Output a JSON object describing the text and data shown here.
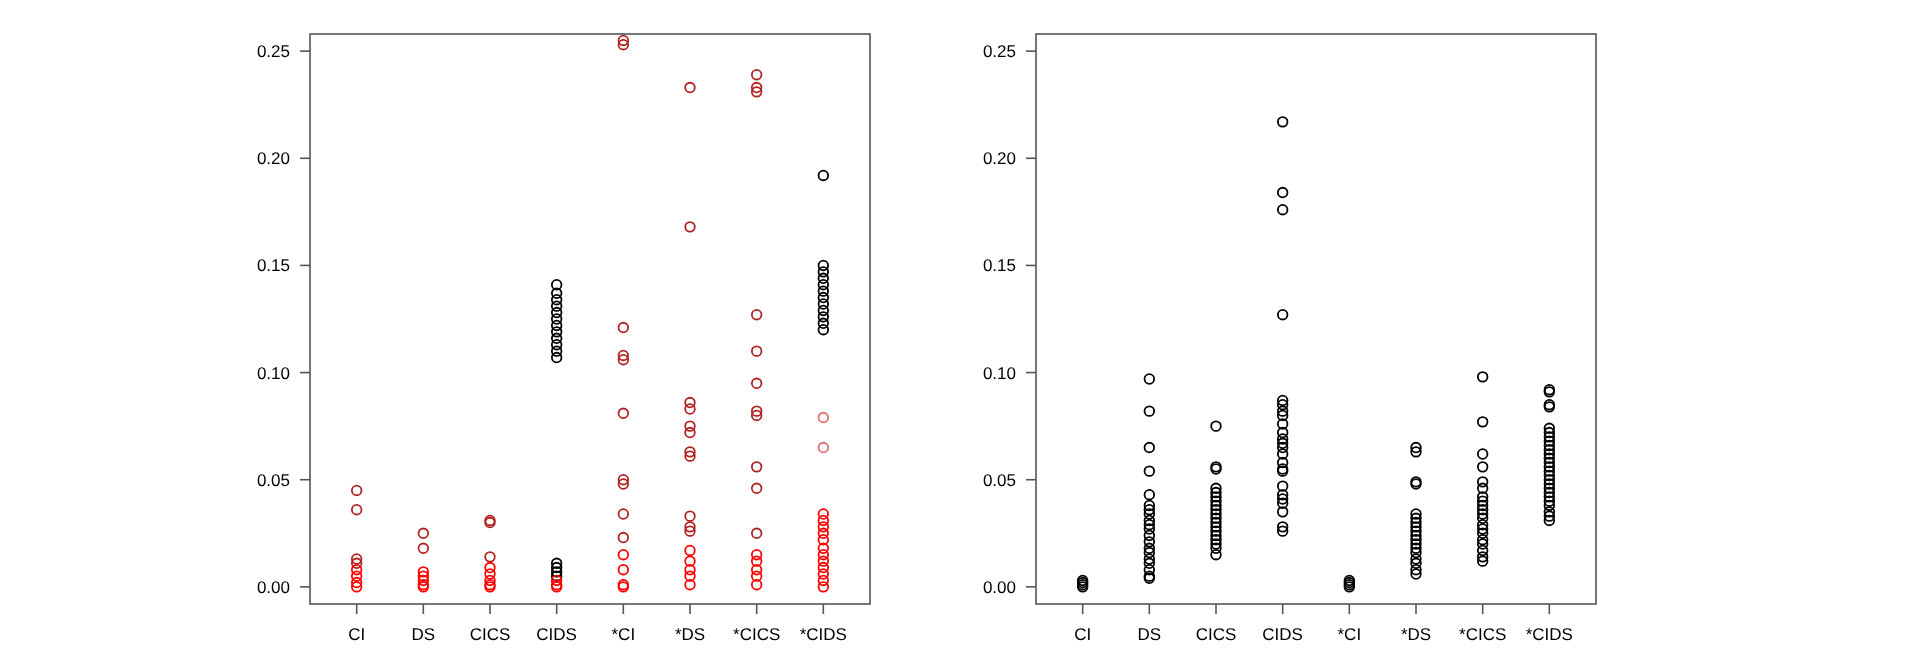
{
  "chart_data": [
    {
      "type": "scatter",
      "categories": [
        "CI",
        "DS",
        "CICS",
        "CIDS",
        "*CI",
        "*DS",
        "*CICS",
        "*CIDS"
      ],
      "ylim": [
        -0.008,
        0.258
      ],
      "yticks": [
        {
          "value": 0,
          "label": "0.00"
        },
        {
          "value": 0.05,
          "label": "0.05"
        },
        {
          "value": 0.1,
          "label": "0.10"
        },
        {
          "value": 0.15,
          "label": "0.15"
        },
        {
          "value": 0.2,
          "label": "0.20"
        },
        {
          "value": 0.25,
          "label": "0.25"
        }
      ],
      "marker": "circle",
      "grid": false,
      "series": [
        {
          "color": "#000000",
          "x": [
            "CIDS",
            "CIDS",
            "CIDS",
            "CIDS",
            "CIDS",
            "CIDS",
            "CIDS",
            "CIDS",
            "CIDS",
            "CIDS",
            "CIDS",
            "CIDS",
            "CIDS",
            "CIDS",
            "CIDS",
            "CIDS",
            "*CIDS",
            "*CIDS",
            "*CIDS",
            "*CIDS",
            "*CIDS",
            "*CIDS",
            "*CIDS",
            "*CIDS",
            "*CIDS",
            "*CIDS",
            "*CIDS",
            "*CIDS"
          ],
          "values": [
            0.141,
            0.137,
            0.134,
            0.131,
            0.128,
            0.125,
            0.122,
            0.119,
            0.116,
            0.113,
            0.11,
            0.107,
            0.011,
            0.009,
            0.007,
            0.005,
            0.192,
            0.15,
            0.147,
            0.144,
            0.141,
            0.138,
            0.135,
            0.132,
            0.129,
            0.126,
            0.123,
            0.12
          ]
        },
        {
          "color": "#b22222",
          "x": [
            "CI",
            "CI",
            "CI",
            "CI",
            "DS",
            "DS",
            "CICS",
            "CICS",
            "CICS",
            "*CI",
            "*CI",
            "*CI",
            "*CI",
            "*CI",
            "*CI",
            "*CI",
            "*CI",
            "*CI",
            "*CI",
            "*DS",
            "*DS",
            "*DS",
            "*DS",
            "*DS",
            "*DS",
            "*DS",
            "*DS",
            "*DS",
            "*DS",
            "*DS",
            "*CICS",
            "*CICS",
            "*CICS",
            "*CICS",
            "*CICS",
            "*CICS",
            "*CICS",
            "*CICS",
            "*CICS",
            "*CICS",
            "*CICS"
          ],
          "values": [
            0.045,
            0.036,
            0.013,
            0.011,
            0.025,
            0.018,
            0.03,
            0.031,
            0.014,
            0.255,
            0.253,
            0.121,
            0.108,
            0.106,
            0.081,
            0.05,
            0.048,
            0.034,
            0.023,
            0.233,
            0.168,
            0.086,
            0.083,
            0.075,
            0.072,
            0.063,
            0.061,
            0.033,
            0.028,
            0.026,
            0.239,
            0.233,
            0.231,
            0.127,
            0.11,
            0.095,
            0.082,
            0.08,
            0.056,
            0.046,
            0.025
          ]
        },
        {
          "color": "#e07070",
          "x": [
            "*CIDS",
            "*CIDS"
          ],
          "values": [
            0.079,
            0.065
          ]
        },
        {
          "color": "#ff0000",
          "x": [
            "CI",
            "CI",
            "CI",
            "CI",
            "DS",
            "DS",
            "DS",
            "DS",
            "DS",
            "CICS",
            "CICS",
            "CICS",
            "CICS",
            "CICS",
            "CIDS",
            "CIDS",
            "CIDS",
            "*CI",
            "*CI",
            "*CI",
            "*CI",
            "*DS",
            "*DS",
            "*DS",
            "*DS",
            "*DS",
            "*CICS",
            "*CICS",
            "*CICS",
            "*CICS",
            "*CICS",
            "*CIDS",
            "*CIDS",
            "*CIDS",
            "*CIDS",
            "*CIDS",
            "*CIDS",
            "*CIDS",
            "*CIDS",
            "*CIDS",
            "*CIDS",
            "*CIDS",
            "*CIDS"
          ],
          "values": [
            0.008,
            0.005,
            0.002,
            0,
            0.007,
            0.005,
            0.003,
            0.001,
            0,
            0.009,
            0.006,
            0.003,
            0.001,
            0,
            0.003,
            0.001,
            0,
            0.015,
            0.008,
            0.001,
            0,
            0.017,
            0.012,
            0.008,
            0.005,
            0.001,
            0.015,
            0.012,
            0.008,
            0.005,
            0.001,
            0.034,
            0.031,
            0.028,
            0.025,
            0.022,
            0.018,
            0.015,
            0.012,
            0.009,
            0.006,
            0.003,
            0
          ]
        }
      ]
    },
    {
      "type": "scatter",
      "categories": [
        "CI",
        "DS",
        "CICS",
        "CIDS",
        "*CI",
        "*DS",
        "*CICS",
        "*CIDS"
      ],
      "ylim": [
        -0.008,
        0.258
      ],
      "yticks": [
        {
          "value": 0,
          "label": "0.00"
        },
        {
          "value": 0.05,
          "label": "0.05"
        },
        {
          "value": 0.1,
          "label": "0.10"
        },
        {
          "value": 0.15,
          "label": "0.15"
        },
        {
          "value": 0.2,
          "label": "0.20"
        },
        {
          "value": 0.25,
          "label": "0.25"
        }
      ],
      "marker": "circle",
      "grid": false,
      "series": [
        {
          "color": "#000000",
          "x": [
            "CI",
            "CI",
            "CI",
            "CI",
            "DS",
            "DS",
            "DS",
            "DS",
            "DS",
            "DS",
            "DS",
            "DS",
            "DS",
            "DS",
            "DS",
            "DS",
            "DS",
            "DS",
            "DS",
            "DS",
            "DS",
            "DS",
            "DS",
            "DS",
            "CICS",
            "CICS",
            "CICS",
            "CICS",
            "CICS",
            "CICS",
            "CICS",
            "CICS",
            "CICS",
            "CICS",
            "CICS",
            "CICS",
            "CICS",
            "CICS",
            "CICS",
            "CICS",
            "CICS",
            "CICS",
            "CICS",
            "CIDS",
            "CIDS",
            "CIDS",
            "CIDS",
            "CIDS",
            "CIDS",
            "CIDS",
            "CIDS",
            "CIDS",
            "CIDS",
            "CIDS",
            "CIDS",
            "CIDS",
            "CIDS",
            "CIDS",
            "CIDS",
            "CIDS",
            "CIDS",
            "CIDS",
            "CIDS",
            "CIDS",
            "CIDS",
            "CIDS",
            "CIDS",
            "*CI",
            "*CI",
            "*CI",
            "*CI",
            "*DS",
            "*DS",
            "*DS",
            "*DS",
            "*DS",
            "*DS",
            "*DS",
            "*DS",
            "*DS",
            "*DS",
            "*DS",
            "*DS",
            "*DS",
            "*DS",
            "*DS",
            "*DS",
            "*DS",
            "*DS",
            "*CICS",
            "*CICS",
            "*CICS",
            "*CICS",
            "*CICS",
            "*CICS",
            "*CICS",
            "*CICS",
            "*CICS",
            "*CICS",
            "*CICS",
            "*CICS",
            "*CICS",
            "*CICS",
            "*CICS",
            "*CICS",
            "*CICS",
            "*CICS",
            "*CICS",
            "*CICS",
            "*CIDS",
            "*CIDS",
            "*CIDS",
            "*CIDS",
            "*CIDS",
            "*CIDS",
            "*CIDS",
            "*CIDS",
            "*CIDS",
            "*CIDS",
            "*CIDS",
            "*CIDS",
            "*CIDS",
            "*CIDS",
            "*CIDS",
            "*CIDS",
            "*CIDS",
            "*CIDS",
            "*CIDS",
            "*CIDS",
            "*CIDS",
            "*CIDS",
            "*CIDS",
            "*CIDS",
            "*CIDS",
            "*CIDS"
          ],
          "values": [
            0.001,
            0.002,
            0,
            0.003,
            0.097,
            0.082,
            0.065,
            0.054,
            0.043,
            0.038,
            0.036,
            0.034,
            0.031,
            0.029,
            0.027,
            0.024,
            0.021,
            0.018,
            0.016,
            0.013,
            0.011,
            0.008,
            0.005,
            0.004,
            0.075,
            0.056,
            0.055,
            0.046,
            0.044,
            0.042,
            0.04,
            0.038,
            0.036,
            0.034,
            0.032,
            0.03,
            0.028,
            0.026,
            0.024,
            0.022,
            0.02,
            0.018,
            0.015,
            0.217,
            0.184,
            0.176,
            0.127,
            0.087,
            0.085,
            0.082,
            0.08,
            0.076,
            0.072,
            0.069,
            0.067,
            0.065,
            0.062,
            0.058,
            0.055,
            0.054,
            0.047,
            0.043,
            0.041,
            0.039,
            0.035,
            0.028,
            0.026,
            0.001,
            0.002,
            0,
            0.003,
            0.065,
            0.063,
            0.049,
            0.048,
            0.034,
            0.032,
            0.03,
            0.028,
            0.026,
            0.024,
            0.022,
            0.02,
            0.018,
            0.016,
            0.013,
            0.011,
            0.008,
            0.006,
            0.098,
            0.077,
            0.062,
            0.056,
            0.049,
            0.046,
            0.042,
            0.04,
            0.038,
            0.036,
            0.034,
            0.032,
            0.029,
            0.027,
            0.025,
            0.022,
            0.02,
            0.017,
            0.014,
            0.012,
            0.092,
            0.091,
            0.085,
            0.084,
            0.074,
            0.072,
            0.07,
            0.068,
            0.066,
            0.064,
            0.062,
            0.06,
            0.058,
            0.056,
            0.054,
            0.052,
            0.05,
            0.048,
            0.046,
            0.044,
            0.042,
            0.04,
            0.038,
            0.035,
            0.033,
            0.031
          ]
        }
      ]
    }
  ]
}
